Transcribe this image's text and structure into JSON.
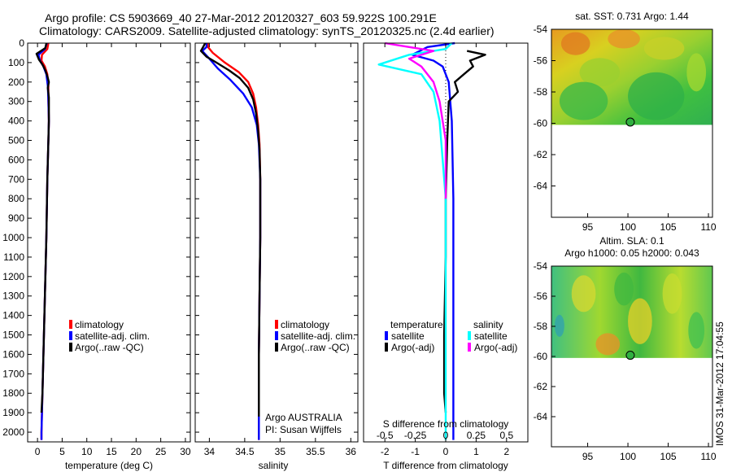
{
  "header": {
    "title_line1": "Argo profile: CS 5903669_40 27-Mar-2012 20120327_603 59.922S 100.291E",
    "title_line2": "Climatology: CARS2009. Satellite-adjusted climatology: synTS_20120325.nc (2.4d earlier)"
  },
  "colors": {
    "climatology": "#ff0000",
    "satellite": "#0000ff",
    "argo": "#000000",
    "sal_satellite": "#00ffff",
    "sal_argo": "#ff00ff"
  },
  "chart_data": [
    {
      "type": "line",
      "id": "temperature",
      "xlabel": "temperature (deg C)",
      "ylabel": "",
      "xlim": [
        -2,
        31
      ],
      "ylim": [
        2050,
        0
      ],
      "xticks": [
        0,
        5,
        10,
        15,
        20,
        25,
        30
      ],
      "yticks": [
        0,
        100,
        200,
        300,
        400,
        500,
        600,
        700,
        800,
        900,
        1000,
        1100,
        1200,
        1300,
        1400,
        1500,
        1600,
        1700,
        1800,
        1900,
        2000
      ],
      "legend": [
        "climatology",
        "satellite-adj. clim.",
        "Argo(..raw -QC)"
      ],
      "series": [
        {
          "name": "climatology",
          "color": "#ff0000",
          "points": [
            [
              2.2,
              0
            ],
            [
              2.0,
              30
            ],
            [
              0.9,
              60
            ],
            [
              0.8,
              90
            ],
            [
              1.5,
              120
            ],
            [
              2.0,
              160
            ],
            [
              2.2,
              220
            ],
            [
              2.2,
              300
            ],
            [
              2.3,
              400
            ],
            [
              2.2,
              500
            ],
            [
              2.0,
              700
            ],
            [
              1.8,
              1000
            ],
            [
              1.5,
              1300
            ],
            [
              1.2,
              1600
            ],
            [
              1.0,
              1800
            ],
            [
              0.8,
              2000
            ],
            [
              0.8,
              2040
            ]
          ]
        },
        {
          "name": "satellite-adj. clim.",
          "color": "#0000ff",
          "points": [
            [
              1.9,
              0
            ],
            [
              1.5,
              30
            ],
            [
              0.2,
              60
            ],
            [
              0.5,
              90
            ],
            [
              1.2,
              120
            ],
            [
              1.8,
              160
            ],
            [
              2.1,
              220
            ],
            [
              2.2,
              300
            ],
            [
              2.3,
              400
            ],
            [
              2.2,
              500
            ],
            [
              2.0,
              700
            ],
            [
              1.8,
              1000
            ],
            [
              1.5,
              1300
            ],
            [
              1.2,
              1600
            ],
            [
              1.0,
              1800
            ],
            [
              0.8,
              2000
            ],
            [
              0.8,
              2040
            ]
          ]
        },
        {
          "name": "Argo(..raw -QC)",
          "color": "#000000",
          "points": [
            [
              1.8,
              0
            ],
            [
              1.6,
              25
            ],
            [
              -0.2,
              55
            ],
            [
              0.3,
              85
            ],
            [
              1.0,
              110
            ],
            [
              1.6,
              140
            ],
            [
              2.0,
              170
            ],
            [
              2.3,
              200
            ],
            [
              2.1,
              230
            ],
            [
              2.3,
              280
            ],
            [
              2.3,
              400
            ],
            [
              2.2,
              500
            ],
            [
              2.0,
              700
            ],
            [
              1.8,
              1000
            ],
            [
              1.5,
              1300
            ],
            [
              1.2,
              1600
            ],
            [
              1.0,
              1800
            ],
            [
              0.8,
              1900
            ]
          ]
        }
      ]
    },
    {
      "type": "line",
      "id": "salinity",
      "xlabel": "salinity",
      "ylabel": "",
      "xlim": [
        33.8,
        36.1
      ],
      "ylim": [
        2050,
        0
      ],
      "xticks": [
        34,
        34.5,
        35,
        35.5,
        36
      ],
      "xtick_labels": [
        "34",
        "34.5",
        "35",
        "35.5",
        "36"
      ],
      "legend": [
        "climatology",
        "satellite-adj. clim.",
        "Argo(..raw -QC)"
      ],
      "series": [
        {
          "name": "climatology",
          "color": "#ff0000",
          "points": [
            [
              33.98,
              0
            ],
            [
              33.98,
              20
            ],
            [
              34.05,
              50
            ],
            [
              34.22,
              100
            ],
            [
              34.42,
              150
            ],
            [
              34.55,
              200
            ],
            [
              34.62,
              260
            ],
            [
              34.66,
              330
            ],
            [
              34.69,
              420
            ],
            [
              34.71,
              520
            ],
            [
              34.72,
              700
            ],
            [
              34.72,
              1000
            ],
            [
              34.71,
              1300
            ],
            [
              34.7,
              1600
            ],
            [
              34.7,
              1900
            ],
            [
              34.7,
              2040
            ]
          ]
        },
        {
          "name": "satellite-adj. clim.",
          "color": "#0000ff",
          "points": [
            [
              33.96,
              0
            ],
            [
              33.96,
              20
            ],
            [
              33.9,
              40
            ],
            [
              34.0,
              80
            ],
            [
              34.12,
              130
            ],
            [
              34.3,
              190
            ],
            [
              34.48,
              260
            ],
            [
              34.6,
              330
            ],
            [
              34.67,
              420
            ],
            [
              34.7,
              520
            ],
            [
              34.72,
              700
            ],
            [
              34.72,
              1000
            ],
            [
              34.71,
              1300
            ],
            [
              34.7,
              1600
            ],
            [
              34.7,
              1900
            ],
            [
              34.7,
              2040
            ]
          ]
        },
        {
          "name": "Argo(..raw -QC)",
          "color": "#000000",
          "points": [
            [
              33.94,
              0
            ],
            [
              33.92,
              15
            ],
            [
              33.88,
              40
            ],
            [
              33.96,
              70
            ],
            [
              34.1,
              100
            ],
            [
              34.28,
              140
            ],
            [
              34.43,
              180
            ],
            [
              34.55,
              230
            ],
            [
              34.62,
              290
            ],
            [
              34.66,
              360
            ],
            [
              34.69,
              450
            ],
            [
              34.71,
              550
            ],
            [
              34.72,
              700
            ],
            [
              34.72,
              1000
            ],
            [
              34.71,
              1300
            ],
            [
              34.7,
              1600
            ],
            [
              34.7,
              1920
            ]
          ]
        }
      ],
      "annotation_line1": "Argo AUSTRALIA",
      "annotation_line2": "PI: Susan Wijffels"
    },
    {
      "type": "line",
      "id": "differences",
      "xlabel": "T difference from climatology",
      "xlabel_top": "S difference from climatology",
      "ylabel": "",
      "xlim": [
        -2.7,
        2.7
      ],
      "ylim": [
        2050,
        0
      ],
      "xticks": [
        -2,
        -1,
        0,
        1,
        2
      ],
      "s_xticks": [
        -0.5,
        -0.25,
        0,
        0.25,
        0.5
      ],
      "s_xtick_labels": [
        "-0.5",
        "-0.25",
        "0",
        "0.25",
        "0.5"
      ],
      "s_scale": 0.25,
      "legend_temperature_title": "temperature",
      "legend_salinity_title": "salinity",
      "legend": [
        "satellite",
        "Argo(-adj)",
        "satellite",
        "Argo(-adj)"
      ],
      "series": [
        {
          "name": "satellite",
          "quantity": "temperature",
          "color": "#0000ff",
          "points": [
            [
              0.3,
              0
            ],
            [
              -0.6,
              20
            ],
            [
              -1.1,
              60
            ],
            [
              -0.4,
              90
            ],
            [
              -0.1,
              120
            ],
            [
              0.1,
              200
            ],
            [
              0.2,
              400
            ],
            [
              0.25,
              800
            ],
            [
              0.25,
              1200
            ],
            [
              0.25,
              1600
            ],
            [
              0.25,
              2040
            ]
          ]
        },
        {
          "name": "Argo(-adj)",
          "quantity": "temperature",
          "color": "#000000",
          "points": [
            [
              0.7,
              40
            ],
            [
              1.3,
              60
            ],
            [
              0.8,
              90
            ],
            [
              0.9,
              120
            ],
            [
              0.6,
              160
            ],
            [
              0.3,
              200
            ],
            [
              0.4,
              250
            ],
            [
              0.1,
              300
            ],
            [
              0.05,
              500
            ],
            [
              0,
              800
            ],
            [
              0,
              1100
            ],
            [
              -0.05,
              1500
            ],
            [
              -0.05,
              1800
            ],
            [
              0,
              1900
            ]
          ]
        },
        {
          "name": "satellite",
          "quantity": "salinity",
          "color": "#00ffff",
          "points": [
            [
              0.05,
              0
            ],
            [
              0.0,
              30
            ],
            [
              -0.3,
              60
            ],
            [
              -0.55,
              110
            ],
            [
              -0.2,
              160
            ],
            [
              -0.1,
              250
            ],
            [
              -0.05,
              400
            ],
            [
              0,
              800
            ],
            [
              0,
              1500
            ],
            [
              0,
              2040
            ]
          ]
        },
        {
          "name": "Argo(-adj)",
          "quantity": "salinity",
          "color": "#ff00ff",
          "points": [
            [
              -0.5,
              0
            ],
            [
              -0.1,
              40
            ],
            [
              -0.3,
              80
            ],
            [
              -0.2,
              120
            ],
            [
              -0.1,
              200
            ],
            [
              -0.05,
              300
            ],
            [
              0,
              500
            ],
            [
              0,
              800
            ]
          ]
        }
      ]
    },
    {
      "type": "heatmap",
      "id": "sst-map",
      "title": "sat. SST: 0.731 Argo: 1.44",
      "xlim": [
        90.5,
        110.5
      ],
      "ylim": [
        -66,
        -54
      ],
      "xticks": [
        95,
        100,
        105,
        110
      ],
      "yticks": [
        -54,
        -56,
        -58,
        -60,
        -62,
        -64
      ],
      "data_ylim": [
        -60.1,
        -54
      ],
      "marker": {
        "lon": 100.291,
        "lat": -59.922
      }
    },
    {
      "type": "heatmap",
      "id": "sla-map",
      "title": "Altim. SLA: 0.1",
      "title_line2": "Argo h1000: 0.05 h2000: 0.043",
      "xlim": [
        90.5,
        110.5
      ],
      "ylim": [
        -66,
        -54
      ],
      "xticks": [
        95,
        100,
        105,
        110
      ],
      "yticks": [
        -54,
        -56,
        -58,
        -60,
        -62,
        -64
      ],
      "data_ylim": [
        -60.1,
        -54
      ],
      "marker": {
        "lon": 100.291,
        "lat": -59.922
      }
    }
  ],
  "footer": {
    "stamp": "IMOS 31-Mar-2012 17:04:55"
  }
}
